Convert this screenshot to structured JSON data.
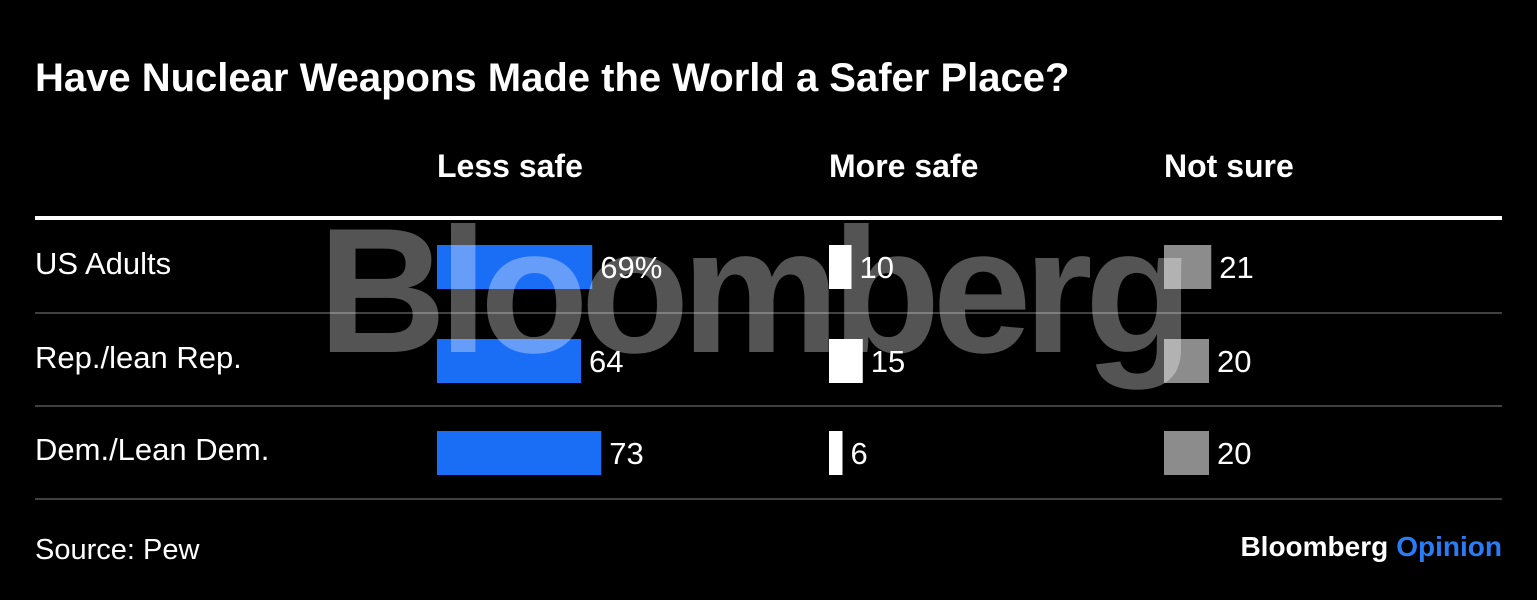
{
  "chart_data": {
    "type": "bar",
    "title": "Have Nuclear Weapons Made the World a Safer Place?",
    "categories": [
      "US Adults",
      "Rep./lean Rep.",
      "Dem./Lean Dem."
    ],
    "series": [
      {
        "name": "Less safe",
        "values": [
          69,
          64,
          73
        ],
        "labels": [
          "69%",
          "64",
          "73"
        ],
        "color": "#1a6ef5"
      },
      {
        "name": "More safe",
        "values": [
          10,
          15,
          6
        ],
        "labels": [
          "10",
          "15",
          "6"
        ],
        "color": "#ffffff"
      },
      {
        "name": "Not sure",
        "values": [
          21,
          20,
          20
        ],
        "labels": [
          "21",
          "20",
          "20"
        ],
        "color": "#8c8c8c"
      }
    ],
    "unit": "%",
    "source": "Source: Pew",
    "watermark": "Bloomberg"
  },
  "footer": {
    "brand_main": "Bloomberg",
    "brand_sub": "Opinion",
    "brand_sub_color": "#2a7cf6"
  }
}
